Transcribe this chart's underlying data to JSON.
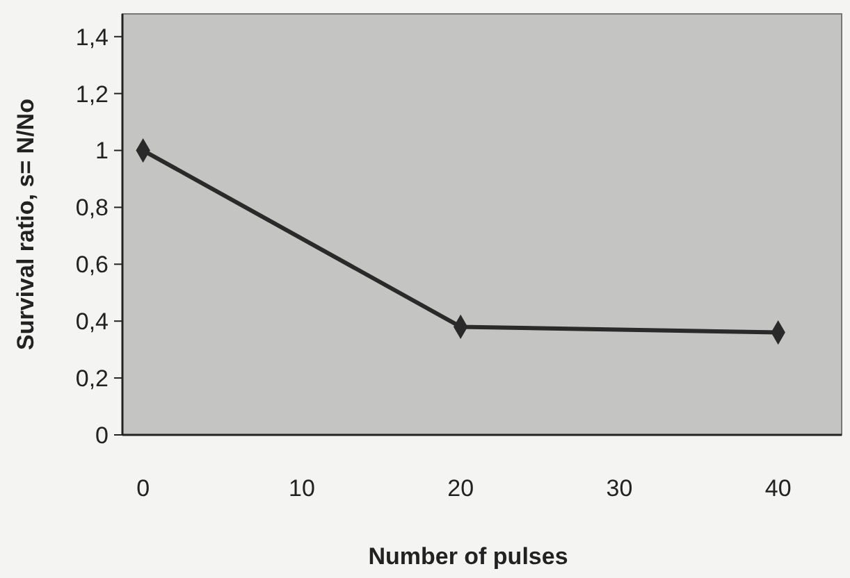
{
  "chart_data": {
    "type": "line",
    "xlabel": "Number of pulses",
    "ylabel": "Survival ratio, s= N/No",
    "x": [
      0,
      20,
      40
    ],
    "series": [
      {
        "color": "#2a2a2a",
        "values": [
          1,
          0.38,
          0.36
        ]
      }
    ],
    "xlim": [
      -1.3,
      44
    ],
    "xticks": [
      0,
      10,
      20,
      30,
      40
    ],
    "ylim": [
      0,
      1.48
    ],
    "yticks": [
      0,
      {
        "value": 0.2,
        "label": "0,2"
      },
      {
        "value": 0.4,
        "label": "0,4"
      },
      {
        "value": 0.6,
        "label": "0,6"
      },
      {
        "value": 0.8,
        "label": "0,8"
      },
      1,
      {
        "value": 1.2,
        "label": "1,2"
      },
      {
        "value": 1.4,
        "label": "1,4"
      }
    ],
    "grid": false,
    "marker": "diamond",
    "line_style": "solid"
  }
}
